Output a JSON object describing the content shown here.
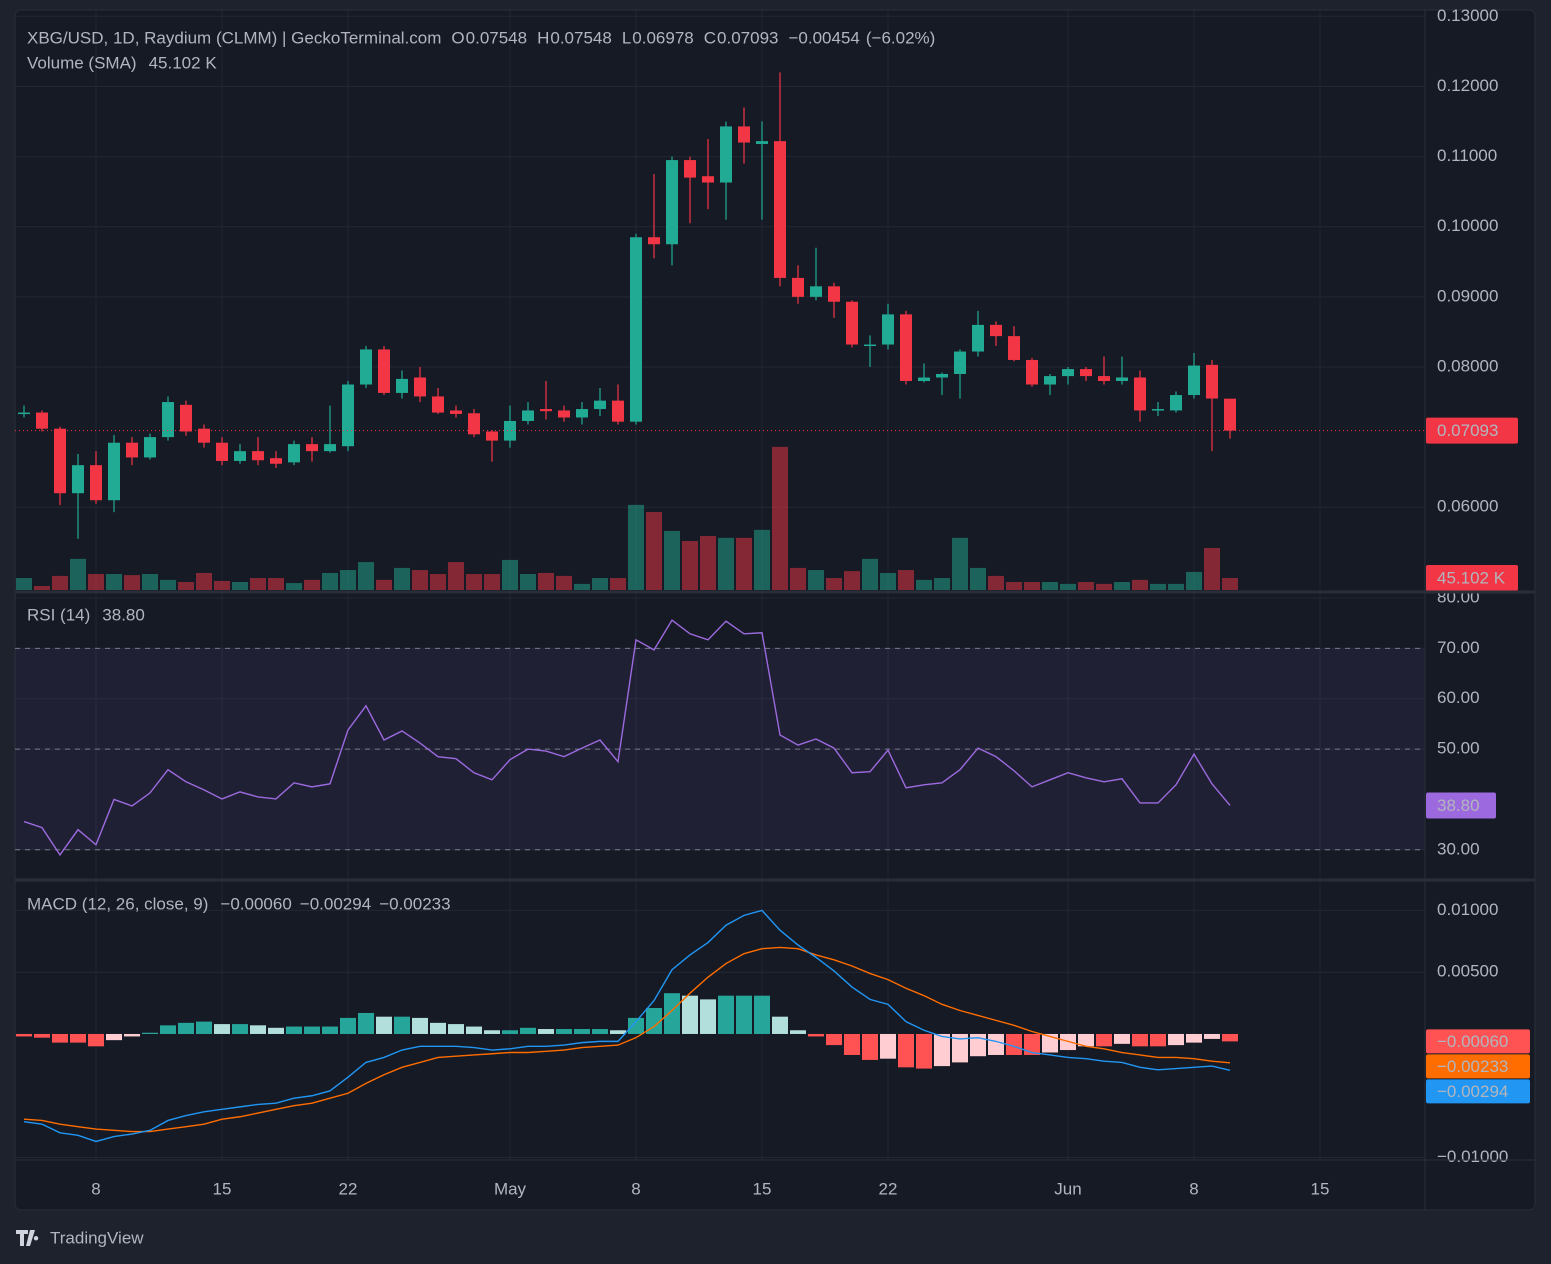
{
  "chart_data": [
    {
      "type": "candlestick",
      "title": "XBG/USD, 1D, Raydium (CLMM) | GeckoTerminal.com",
      "legend_labels": [
        "O",
        "H",
        "L",
        "C"
      ],
      "change": {
        "value": -0.00454,
        "label": "−0.00454"
      },
      "change_pct": {
        "value": -6.02,
        "label": "(−6.02%)"
      },
      "up_color": "#22ab94",
      "down_color": "#f23645",
      "x": [
        "Apr 4",
        "Apr 5",
        "Apr 6",
        "Apr 7",
        "Apr 8",
        "Apr 9",
        "Apr 10",
        "Apr 11",
        "Apr 12",
        "Apr 13",
        "Apr 14",
        "Apr 15",
        "Apr 16",
        "Apr 17",
        "Apr 18",
        "Apr 19",
        "Apr 20",
        "Apr 21",
        "Apr 22",
        "Apr 23",
        "Apr 24",
        "Apr 25",
        "Apr 26",
        "Apr 27",
        "Apr 28",
        "Apr 29",
        "Apr 30",
        "May 1",
        "May 2",
        "May 3",
        "May 4",
        "May 5",
        "May 6",
        "May 7",
        "May 8",
        "May 9",
        "May 10",
        "May 11",
        "May 12",
        "May 13",
        "May 14",
        "May 15",
        "May 16",
        "May 17",
        "May 18",
        "May 19",
        "May 20",
        "May 21",
        "May 22",
        "May 23",
        "May 24",
        "May 25",
        "May 26",
        "May 27",
        "May 28",
        "May 29",
        "May 30",
        "May 31",
        "Jun 1",
        "Jun 2",
        "Jun 3",
        "Jun 4",
        "Jun 5",
        "Jun 6",
        "Jun 7",
        "Jun 8",
        "Jun 9",
        "Jun 10"
      ],
      "open": [
        0.0733,
        0.0735,
        0.0712,
        0.062,
        0.066,
        0.061,
        0.0692,
        0.0671,
        0.07,
        0.0746,
        0.0712,
        0.0692,
        0.0666,
        0.068,
        0.067,
        0.0664,
        0.069,
        0.068,
        0.0687,
        0.0775,
        0.0825,
        0.0763,
        0.0785,
        0.0758,
        0.0738,
        0.0734,
        0.0708,
        0.0695,
        0.0723,
        0.074,
        0.0738,
        0.0728,
        0.074,
        0.0752,
        0.0722,
        0.0985,
        0.0975,
        0.1095,
        0.1072,
        0.1063,
        0.1143,
        0.1118,
        0.1122,
        0.0927,
        0.09,
        0.0915,
        0.0893,
        0.083,
        0.0832,
        0.0875,
        0.078,
        0.0785,
        0.079,
        0.0822,
        0.086,
        0.0844,
        0.081,
        0.0775,
        0.0787,
        0.0797,
        0.0787,
        0.078,
        0.0785,
        0.0738,
        0.0738,
        0.076,
        0.0803,
        0.07548
      ],
      "high": [
        0.0745,
        0.0738,
        0.0715,
        0.0676,
        0.068,
        0.0703,
        0.07,
        0.0705,
        0.0758,
        0.0752,
        0.0718,
        0.07,
        0.069,
        0.07,
        0.068,
        0.0695,
        0.07,
        0.0745,
        0.078,
        0.083,
        0.083,
        0.0795,
        0.08,
        0.077,
        0.0745,
        0.074,
        0.071,
        0.0745,
        0.075,
        0.078,
        0.0745,
        0.075,
        0.077,
        0.0775,
        0.099,
        0.1075,
        0.11,
        0.11,
        0.1125,
        0.115,
        0.117,
        0.115,
        0.122,
        0.0945,
        0.097,
        0.092,
        0.0895,
        0.0845,
        0.089,
        0.088,
        0.0805,
        0.0792,
        0.0825,
        0.088,
        0.0865,
        0.0858,
        0.0813,
        0.079,
        0.08,
        0.08,
        0.0815,
        0.0815,
        0.0795,
        0.075,
        0.0765,
        0.082,
        0.081,
        0.07548
      ],
      "low": [
        0.0728,
        0.0708,
        0.0603,
        0.0555,
        0.0605,
        0.0593,
        0.066,
        0.0668,
        0.0695,
        0.0702,
        0.0685,
        0.066,
        0.0662,
        0.066,
        0.0656,
        0.066,
        0.0665,
        0.0678,
        0.068,
        0.077,
        0.076,
        0.0755,
        0.075,
        0.0733,
        0.0728,
        0.07,
        0.0665,
        0.0685,
        0.0718,
        0.0725,
        0.0722,
        0.0718,
        0.073,
        0.0718,
        0.0718,
        0.0955,
        0.0945,
        0.1005,
        0.1025,
        0.101,
        0.109,
        0.101,
        0.0915,
        0.089,
        0.0895,
        0.087,
        0.0828,
        0.08,
        0.0825,
        0.0775,
        0.0778,
        0.076,
        0.0755,
        0.0815,
        0.083,
        0.0808,
        0.0772,
        0.076,
        0.0775,
        0.078,
        0.0775,
        0.0775,
        0.0722,
        0.073,
        0.0735,
        0.0755,
        0.068,
        0.06978
      ],
      "close": [
        0.0735,
        0.0712,
        0.062,
        0.066,
        0.061,
        0.0692,
        0.0671,
        0.07,
        0.075,
        0.0708,
        0.0692,
        0.0666,
        0.068,
        0.0667,
        0.0662,
        0.069,
        0.068,
        0.069,
        0.0775,
        0.0825,
        0.0763,
        0.0783,
        0.0758,
        0.0735,
        0.0733,
        0.0704,
        0.0695,
        0.0723,
        0.0738,
        0.0737,
        0.0728,
        0.074,
        0.0752,
        0.0722,
        0.0985,
        0.0975,
        0.1095,
        0.107,
        0.1063,
        0.1143,
        0.112,
        0.1122,
        0.0927,
        0.09,
        0.0915,
        0.0893,
        0.0832,
        0.0832,
        0.0875,
        0.078,
        0.0785,
        0.079,
        0.0822,
        0.086,
        0.0844,
        0.081,
        0.0775,
        0.0787,
        0.0797,
        0.0787,
        0.078,
        0.0785,
        0.0738,
        0.074,
        0.076,
        0.0802,
        0.0755,
        0.07093
      ],
      "volume": {
        "name": "Volume (SMA)",
        "values": [
          45,
          15,
          53,
          117,
          60,
          60,
          56,
          60,
          38,
          30,
          64,
          34,
          30,
          45,
          45,
          26,
          38,
          64,
          75,
          105,
          38,
          83,
          75,
          60,
          105,
          60,
          60,
          113,
          60,
          64,
          53,
          23,
          45,
          45,
          320,
          293,
          222,
          184,
          203,
          196,
          196,
          226,
          538,
          83,
          75,
          45,
          71,
          117,
          64,
          75,
          38,
          45,
          196,
          83,
          53,
          30,
          30,
          30,
          23,
          30,
          23,
          30,
          38,
          23,
          23,
          68,
          158,
          45.102
        ],
        "current": {
          "value": 45.102,
          "label": "45.102 K"
        },
        "vlim": [
          0,
          2180
        ]
      },
      "ylim": [
        0.0482,
        0.1309
      ],
      "yticks": [
        {
          "value": 0.13,
          "label": "0.13000"
        },
        {
          "value": 0.12,
          "label": "0.12000"
        },
        {
          "value": 0.11,
          "label": "0.11000"
        },
        {
          "value": 0.1,
          "label": "0.10000"
        },
        {
          "value": 0.09,
          "label": "0.09000"
        },
        {
          "value": 0.08,
          "label": "0.08000"
        },
        {
          "value": 0.06,
          "label": "0.06000"
        }
      ],
      "xticks": [
        {
          "value": "Apr 8",
          "label": "8"
        },
        {
          "value": "Apr 15",
          "label": "15"
        },
        {
          "value": "Apr 22",
          "label": "22"
        },
        {
          "value": "May 1",
          "label": "May"
        },
        {
          "value": "May 8",
          "label": "8"
        },
        {
          "value": "May 15",
          "label": "15"
        },
        {
          "value": "May 22",
          "label": "22"
        },
        {
          "value": "Jun 1",
          "label": "Jun"
        },
        {
          "value": "Jun 8",
          "label": "8"
        },
        {
          "value": "Jun 15",
          "label": "15"
        }
      ],
      "grid": true,
      "branding": "TradingView"
    },
    {
      "type": "line",
      "title": "RSI (14)",
      "color": "#9c6ade",
      "values": [
        35.6,
        34.4,
        29,
        34,
        31,
        40,
        38.7,
        41.3,
        45.9,
        43.5,
        41.9,
        40.1,
        41.5,
        40.5,
        40.1,
        43.3,
        42.5,
        43.1,
        53.8,
        58.6,
        51.8,
        53.6,
        51.2,
        48.5,
        48.1,
        45.3,
        43.9,
        47.9,
        50,
        49.6,
        48.5,
        50.2,
        51.8,
        47.5,
        71.7,
        69.7,
        75.6,
        72.9,
        71.7,
        75.4,
        72.9,
        73.1,
        52.8,
        50.8,
        52,
        50.2,
        45.3,
        45.5,
        49.8,
        42.3,
        42.9,
        43.3,
        45.9,
        50.2,
        48.5,
        45.7,
        42.5,
        43.9,
        45.3,
        44.3,
        43.5,
        44.1,
        39.3,
        39.3,
        42.9,
        49,
        43.1,
        38.8
      ],
      "current": {
        "value": 38.8,
        "label": "38.80"
      },
      "levels": [
        30,
        50,
        70
      ],
      "ylim": [
        24.4,
        80.4
      ],
      "yticks": [
        {
          "value": 80,
          "label": "80.00"
        },
        {
          "value": 70,
          "label": "70.00"
        },
        {
          "value": 60,
          "label": "60.00"
        },
        {
          "value": 50,
          "label": "50.00"
        },
        {
          "value": 30,
          "label": "30.00"
        }
      ]
    },
    {
      "type": "macd",
      "title": "MACD (12, 26, close, 9)",
      "histogram": {
        "colors": [
          "#26a69a",
          "#b2dfdb",
          "#ff5252",
          "#ffcdd2"
        ],
        "values": [
          -0.0002,
          -0.0003,
          -0.0007,
          -0.0007,
          -0.001,
          -0.0005,
          -0.0002,
          0.0001,
          0.0007,
          0.0009,
          0.001,
          0.0008,
          0.0008,
          0.0007,
          0.0005,
          0.0006,
          0.0006,
          0.0006,
          0.0013,
          0.0017,
          0.0014,
          0.0014,
          0.0013,
          0.0009,
          0.0008,
          0.0006,
          0.0003,
          0.0003,
          0.0005,
          0.0004,
          0.0004,
          0.0004,
          0.0004,
          0.0003,
          0.0013,
          0.0021,
          0.0033,
          0.0031,
          0.0028,
          0.0031,
          0.0031,
          0.0031,
          0.0014,
          0.0003,
          -0.0002,
          -0.0009,
          -0.0017,
          -0.0021,
          -0.002,
          -0.0027,
          -0.0028,
          -0.0026,
          -0.0023,
          -0.0018,
          -0.0017,
          -0.0017,
          -0.0017,
          -0.0015,
          -0.0013,
          -0.001,
          -0.001,
          -0.0008,
          -0.001,
          -0.001,
          -0.0009,
          -0.0007,
          -0.0004,
          -0.0006
        ],
        "current": {
          "value": -0.0006,
          "label": "−0.00060"
        }
      },
      "macd": {
        "color": "#2196f3",
        "values": [
          -0.0071,
          -0.0073,
          -0.008,
          -0.0082,
          -0.0087,
          -0.0083,
          -0.0081,
          -0.0078,
          -0.007,
          -0.0066,
          -0.0063,
          -0.0061,
          -0.0059,
          -0.0057,
          -0.0056,
          -0.0052,
          -0.005,
          -0.0046,
          -0.0035,
          -0.0023,
          -0.0019,
          -0.0013,
          -0.001,
          -0.001,
          -0.001,
          -0.0011,
          -0.0013,
          -0.0012,
          -0.001,
          -0.001,
          -0.0009,
          -0.0007,
          -0.0006,
          -0.0006,
          0.001,
          0.0027,
          0.0052,
          0.0064,
          0.0074,
          0.0088,
          0.0096,
          0.01,
          0.0084,
          0.0072,
          0.0062,
          0.0051,
          0.0038,
          0.0028,
          0.0024,
          0.001,
          0.0003,
          -0.0002,
          -0.0004,
          -0.0003,
          -0.0006,
          -0.001,
          -0.0015,
          -0.0017,
          -0.0019,
          -0.002,
          -0.0022,
          -0.0023,
          -0.0027,
          -0.0029,
          -0.0028,
          -0.0027,
          -0.0026,
          -0.00294
        ],
        "current": {
          "value": -0.00294,
          "label": "−0.00294"
        }
      },
      "signal": {
        "color": "#ff6d00",
        "values": [
          -0.0069,
          -0.007,
          -0.0073,
          -0.0075,
          -0.0077,
          -0.0078,
          -0.0079,
          -0.0079,
          -0.0077,
          -0.0075,
          -0.0073,
          -0.0069,
          -0.0067,
          -0.0064,
          -0.0061,
          -0.0058,
          -0.0056,
          -0.0052,
          -0.0048,
          -0.004,
          -0.0033,
          -0.0027,
          -0.0023,
          -0.0019,
          -0.0018,
          -0.0017,
          -0.0016,
          -0.0015,
          -0.0015,
          -0.0014,
          -0.0013,
          -0.0011,
          -0.001,
          -0.0009,
          -0.0003,
          0.0006,
          0.0019,
          0.0033,
          0.0046,
          0.0057,
          0.0065,
          0.0069,
          0.007,
          0.0069,
          0.0064,
          0.006,
          0.0055,
          0.0049,
          0.0044,
          0.0037,
          0.0031,
          0.0024,
          0.0019,
          0.0015,
          0.0011,
          0.0007,
          0.0002,
          -0.0002,
          -0.0006,
          -0.001,
          -0.0012,
          -0.0015,
          -0.0017,
          -0.0019,
          -0.0019,
          -0.002,
          -0.0022,
          -0.00233
        ],
        "current": {
          "value": -0.00233,
          "label": "−0.00233"
        }
      },
      "ylim": [
        -0.0102,
        0.0123
      ],
      "yticks": [
        {
          "value": 0.01,
          "label": "0.01000"
        },
        {
          "value": 0.005,
          "label": "0.00500"
        },
        {
          "value": -0.01,
          "label": "−0.01000"
        }
      ]
    }
  ]
}
